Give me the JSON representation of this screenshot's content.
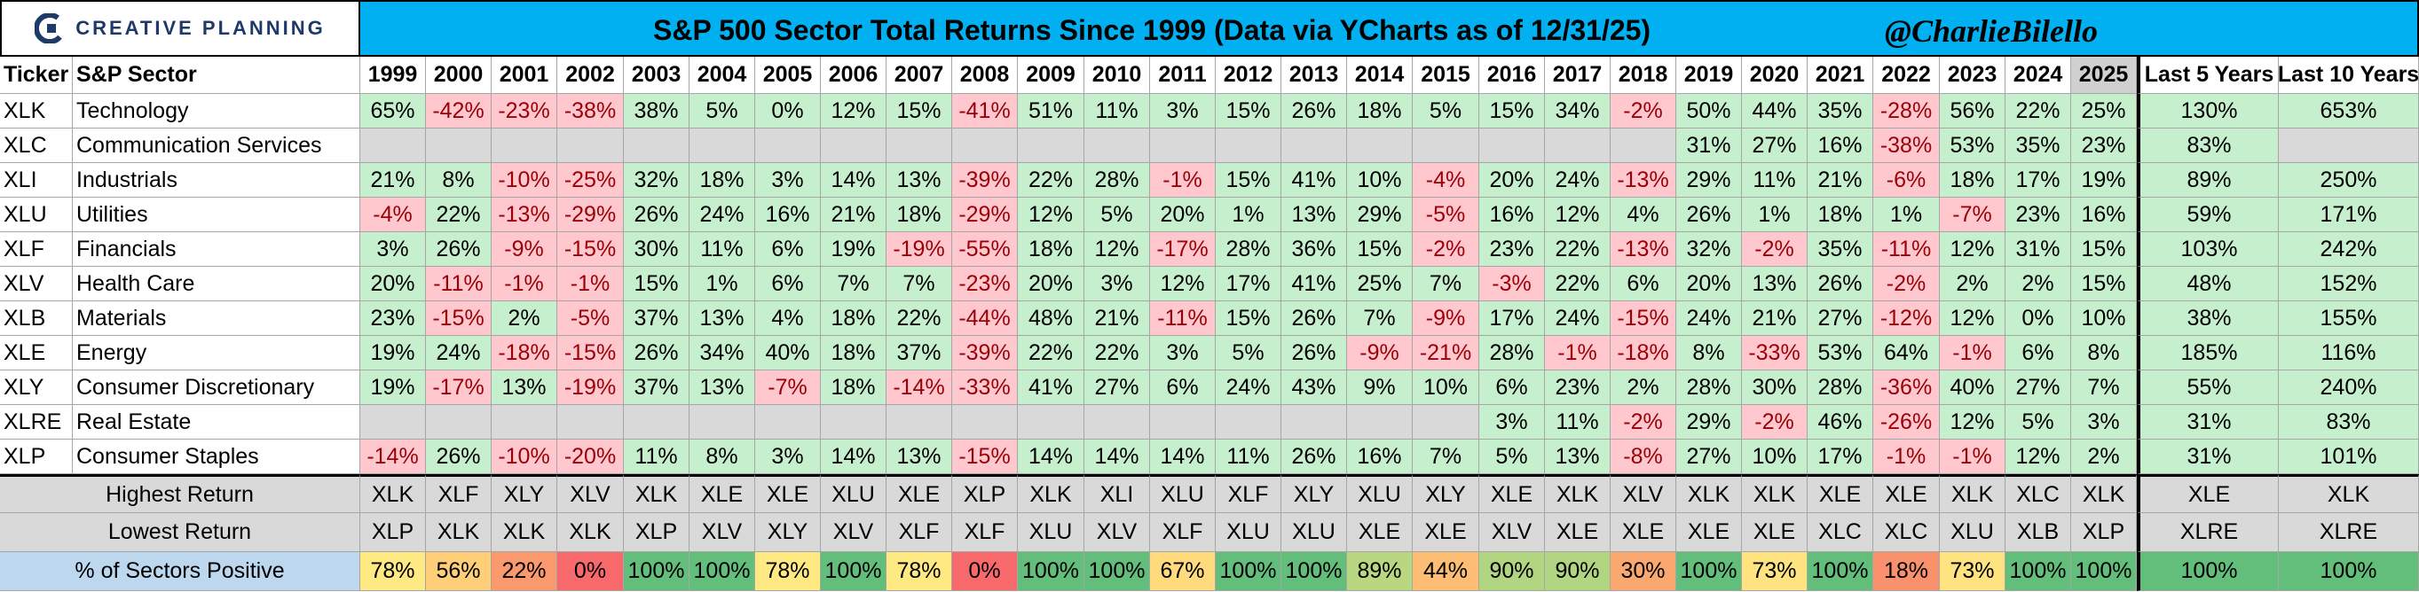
{
  "brand": {
    "logo_text": "CREATIVE PLANNING",
    "logo_icon": "creative-planning-c-icon",
    "color": "#1f3a68"
  },
  "title": "S&P 500 Sector Total Returns Since 1999 (Data via YCharts as of 12/31/25)",
  "handle": "@CharlieBilello",
  "colors": {
    "title_bar": "#00b0f0",
    "positive": "#c6efce",
    "negative": "#ffc7ce",
    "negative_text": "#9c0006",
    "missing": "#d9d9d9"
  },
  "chart_data": {
    "type": "table",
    "title": "S&P 500 Sector Total Returns Since 1999 (Data via YCharts as of 12/31/25)",
    "columns": [
      "Ticker",
      "S&P Sector",
      "1999",
      "2000",
      "2001",
      "2002",
      "2003",
      "2004",
      "2005",
      "2006",
      "2007",
      "2008",
      "2009",
      "2010",
      "2011",
      "2012",
      "2013",
      "2014",
      "2015",
      "2016",
      "2017",
      "2018",
      "2019",
      "2020",
      "2021",
      "2022",
      "2023",
      "2024",
      "2025",
      "Last 5 Years",
      "Last 10 Years"
    ],
    "rows": [
      {
        "ticker": "XLK",
        "sector": "Technology",
        "values": [
          "65%",
          "-42%",
          "-23%",
          "-38%",
          "38%",
          "5%",
          "0%",
          "12%",
          "15%",
          "-41%",
          "51%",
          "11%",
          "3%",
          "15%",
          "26%",
          "18%",
          "5%",
          "15%",
          "34%",
          "-2%",
          "50%",
          "44%",
          "35%",
          "-28%",
          "56%",
          "22%",
          "25%",
          "130%",
          "653%"
        ]
      },
      {
        "ticker": "XLC",
        "sector": "Communication Services",
        "values": [
          "",
          "",
          "",
          "",
          "",
          "",
          "",
          "",
          "",
          "",
          "",
          "",
          "",
          "",
          "",
          "",
          "",
          "",
          "",
          "",
          "31%",
          "27%",
          "16%",
          "-38%",
          "53%",
          "35%",
          "23%",
          "83%",
          ""
        ]
      },
      {
        "ticker": "XLI",
        "sector": "Industrials",
        "values": [
          "21%",
          "8%",
          "-10%",
          "-25%",
          "32%",
          "18%",
          "3%",
          "14%",
          "13%",
          "-39%",
          "22%",
          "28%",
          "-1%",
          "15%",
          "41%",
          "10%",
          "-4%",
          "20%",
          "24%",
          "-13%",
          "29%",
          "11%",
          "21%",
          "-6%",
          "18%",
          "17%",
          "19%",
          "89%",
          "250%"
        ]
      },
      {
        "ticker": "XLU",
        "sector": "Utilities",
        "values": [
          "-4%",
          "22%",
          "-13%",
          "-29%",
          "26%",
          "24%",
          "16%",
          "21%",
          "18%",
          "-29%",
          "12%",
          "5%",
          "20%",
          "1%",
          "13%",
          "29%",
          "-5%",
          "16%",
          "12%",
          "4%",
          "26%",
          "1%",
          "18%",
          "1%",
          "-7%",
          "23%",
          "16%",
          "59%",
          "171%"
        ]
      },
      {
        "ticker": "XLF",
        "sector": "Financials",
        "values": [
          "3%",
          "26%",
          "-9%",
          "-15%",
          "30%",
          "11%",
          "6%",
          "19%",
          "-19%",
          "-55%",
          "18%",
          "12%",
          "-17%",
          "28%",
          "36%",
          "15%",
          "-2%",
          "23%",
          "22%",
          "-13%",
          "32%",
          "-2%",
          "35%",
          "-11%",
          "12%",
          "31%",
          "15%",
          "103%",
          "242%"
        ]
      },
      {
        "ticker": "XLV",
        "sector": "Health Care",
        "values": [
          "20%",
          "-11%",
          "-1%",
          "-1%",
          "15%",
          "1%",
          "6%",
          "7%",
          "7%",
          "-23%",
          "20%",
          "3%",
          "12%",
          "17%",
          "41%",
          "25%",
          "7%",
          "-3%",
          "22%",
          "6%",
          "20%",
          "13%",
          "26%",
          "-2%",
          "2%",
          "2%",
          "15%",
          "48%",
          "152%"
        ]
      },
      {
        "ticker": "XLB",
        "sector": "Materials",
        "values": [
          "23%",
          "-15%",
          "2%",
          "-5%",
          "37%",
          "13%",
          "4%",
          "18%",
          "22%",
          "-44%",
          "48%",
          "21%",
          "-11%",
          "15%",
          "26%",
          "7%",
          "-9%",
          "17%",
          "24%",
          "-15%",
          "24%",
          "21%",
          "27%",
          "-12%",
          "12%",
          "0%",
          "10%",
          "38%",
          "155%"
        ]
      },
      {
        "ticker": "XLE",
        "sector": "Energy",
        "values": [
          "19%",
          "24%",
          "-18%",
          "-15%",
          "26%",
          "34%",
          "40%",
          "18%",
          "37%",
          "-39%",
          "22%",
          "22%",
          "3%",
          "5%",
          "26%",
          "-9%",
          "-21%",
          "28%",
          "-1%",
          "-18%",
          "8%",
          "-33%",
          "53%",
          "64%",
          "-1%",
          "6%",
          "8%",
          "185%",
          "116%"
        ]
      },
      {
        "ticker": "XLY",
        "sector": "Consumer Discretionary",
        "values": [
          "19%",
          "-17%",
          "13%",
          "-19%",
          "37%",
          "13%",
          "-7%",
          "18%",
          "-14%",
          "-33%",
          "41%",
          "27%",
          "6%",
          "24%",
          "43%",
          "9%",
          "10%",
          "6%",
          "23%",
          "2%",
          "28%",
          "30%",
          "28%",
          "-36%",
          "40%",
          "27%",
          "7%",
          "55%",
          "240%"
        ]
      },
      {
        "ticker": "XLRE",
        "sector": "Real Estate",
        "values": [
          "",
          "",
          "",
          "",
          "",
          "",
          "",
          "",
          "",
          "",
          "",
          "",
          "",
          "",
          "",
          "",
          "",
          "3%",
          "11%",
          "-2%",
          "29%",
          "-2%",
          "46%",
          "-26%",
          "12%",
          "5%",
          "3%",
          "31%",
          "83%"
        ]
      },
      {
        "ticker": "XLP",
        "sector": "Consumer Staples",
        "values": [
          "-14%",
          "26%",
          "-10%",
          "-20%",
          "11%",
          "8%",
          "3%",
          "14%",
          "13%",
          "-15%",
          "14%",
          "14%",
          "14%",
          "11%",
          "26%",
          "16%",
          "7%",
          "5%",
          "13%",
          "-8%",
          "27%",
          "10%",
          "17%",
          "-1%",
          "-1%",
          "12%",
          "2%",
          "31%",
          "101%"
        ]
      }
    ],
    "summary": [
      {
        "label": "Highest Return",
        "values": [
          "XLK",
          "XLF",
          "XLY",
          "XLV",
          "XLK",
          "XLE",
          "XLE",
          "XLU",
          "XLE",
          "XLP",
          "XLK",
          "XLI",
          "XLU",
          "XLF",
          "XLY",
          "XLU",
          "XLY",
          "XLE",
          "XLK",
          "XLV",
          "XLK",
          "XLK",
          "XLE",
          "XLE",
          "XLK",
          "XLC",
          "XLK",
          "XLE",
          "XLK"
        ]
      },
      {
        "label": "Lowest Return",
        "values": [
          "XLP",
          "XLK",
          "XLK",
          "XLK",
          "XLP",
          "XLV",
          "XLY",
          "XLV",
          "XLF",
          "XLF",
          "XLU",
          "XLV",
          "XLF",
          "XLU",
          "XLU",
          "XLE",
          "XLE",
          "XLV",
          "XLE",
          "XLE",
          "XLE",
          "XLE",
          "XLC",
          "XLC",
          "XLU",
          "XLB",
          "XLP",
          "XLRE",
          "XLRE"
        ]
      },
      {
        "label": "% of Sectors Positive",
        "values": [
          "78%",
          "56%",
          "22%",
          "0%",
          "100%",
          "100%",
          "78%",
          "100%",
          "78%",
          "0%",
          "100%",
          "100%",
          "67%",
          "100%",
          "100%",
          "89%",
          "44%",
          "90%",
          "90%",
          "30%",
          "100%",
          "73%",
          "100%",
          "18%",
          "73%",
          "100%",
          "100%",
          "100%",
          "100%"
        ],
        "fractions": [
          0.78,
          0.56,
          0.22,
          0.0,
          1.0,
          1.0,
          0.78,
          1.0,
          0.78,
          0.0,
          1.0,
          1.0,
          0.67,
          1.0,
          1.0,
          0.89,
          0.44,
          0.9,
          0.9,
          0.3,
          1.0,
          0.73,
          1.0,
          0.18,
          0.73,
          1.0,
          1.0,
          1.0,
          1.0
        ]
      }
    ]
  }
}
